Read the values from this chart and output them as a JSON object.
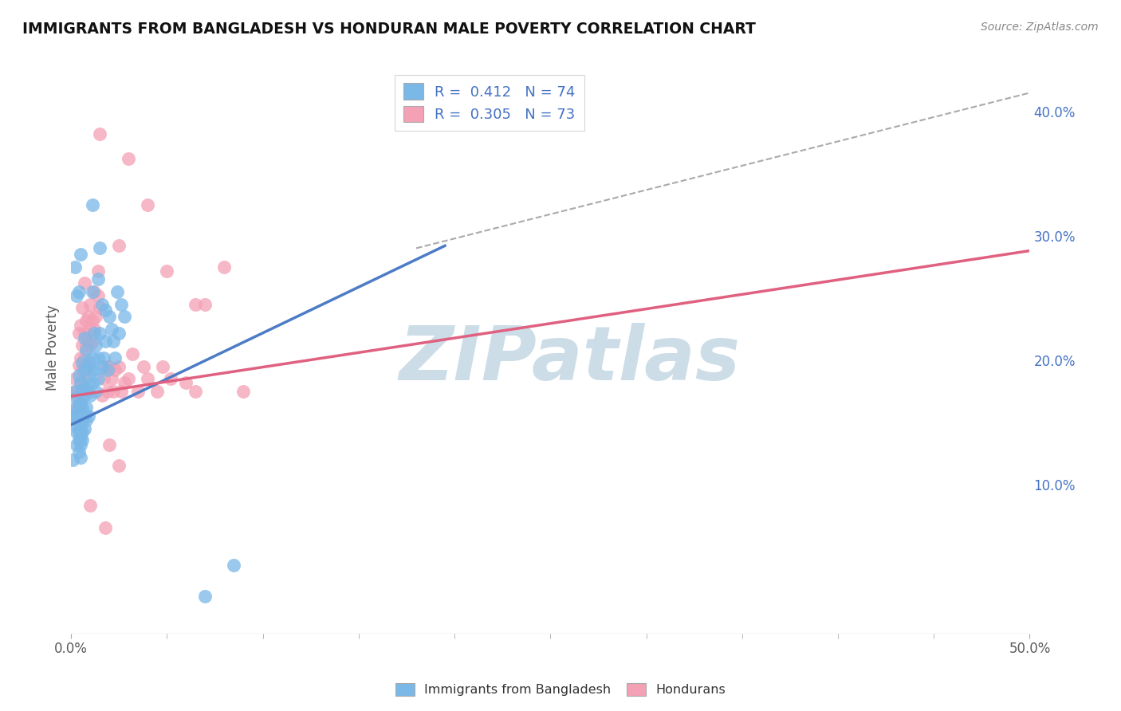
{
  "title": "IMMIGRANTS FROM BANGLADESH VS HONDURAN MALE POVERTY CORRELATION CHART",
  "source": "Source: ZipAtlas.com",
  "ylabel": "Male Poverty",
  "xlim": [
    0.0,
    0.5
  ],
  "ylim": [
    -0.02,
    0.44
  ],
  "yticks_right": [
    0.1,
    0.2,
    0.3,
    0.4
  ],
  "blue_R": 0.412,
  "blue_N": 74,
  "pink_R": 0.305,
  "pink_N": 73,
  "blue_color": "#7ab8e8",
  "pink_color": "#f4a0b5",
  "blue_line_color": "#4d7cc7",
  "pink_line_color": "#e06080",
  "blue_line": [
    [
      0.0,
      0.148
    ],
    [
      0.195,
      0.292
    ]
  ],
  "pink_line": [
    [
      0.0,
      0.171
    ],
    [
      0.5,
      0.288
    ]
  ],
  "ref_line": [
    [
      0.18,
      0.29
    ],
    [
      0.5,
      0.415
    ]
  ],
  "blue_scatter": [
    [
      0.001,
      0.155
    ],
    [
      0.001,
      0.12
    ],
    [
      0.002,
      0.16
    ],
    [
      0.002,
      0.175
    ],
    [
      0.002,
      0.148
    ],
    [
      0.003,
      0.17
    ],
    [
      0.003,
      0.156
    ],
    [
      0.003,
      0.142
    ],
    [
      0.003,
      0.132
    ],
    [
      0.004,
      0.188
    ],
    [
      0.004,
      0.164
    ],
    [
      0.004,
      0.152
    ],
    [
      0.004,
      0.143
    ],
    [
      0.004,
      0.136
    ],
    [
      0.004,
      0.126
    ],
    [
      0.005,
      0.182
    ],
    [
      0.005,
      0.165
    ],
    [
      0.005,
      0.155
    ],
    [
      0.005,
      0.144
    ],
    [
      0.005,
      0.138
    ],
    [
      0.005,
      0.132
    ],
    [
      0.005,
      0.122
    ],
    [
      0.006,
      0.198
    ],
    [
      0.006,
      0.176
    ],
    [
      0.006,
      0.162
    ],
    [
      0.006,
      0.152
    ],
    [
      0.006,
      0.142
    ],
    [
      0.006,
      0.136
    ],
    [
      0.007,
      0.218
    ],
    [
      0.007,
      0.192
    ],
    [
      0.007,
      0.172
    ],
    [
      0.007,
      0.156
    ],
    [
      0.007,
      0.145
    ],
    [
      0.008,
      0.208
    ],
    [
      0.008,
      0.176
    ],
    [
      0.008,
      0.162
    ],
    [
      0.008,
      0.152
    ],
    [
      0.009,
      0.198
    ],
    [
      0.009,
      0.182
    ],
    [
      0.009,
      0.155
    ],
    [
      0.01,
      0.192
    ],
    [
      0.01,
      0.172
    ],
    [
      0.011,
      0.255
    ],
    [
      0.011,
      0.202
    ],
    [
      0.011,
      0.182
    ],
    [
      0.012,
      0.222
    ],
    [
      0.012,
      0.192
    ],
    [
      0.013,
      0.212
    ],
    [
      0.013,
      0.175
    ],
    [
      0.014,
      0.202
    ],
    [
      0.014,
      0.185
    ],
    [
      0.015,
      0.222
    ],
    [
      0.016,
      0.245
    ],
    [
      0.016,
      0.195
    ],
    [
      0.017,
      0.202
    ],
    [
      0.018,
      0.215
    ],
    [
      0.019,
      0.192
    ],
    [
      0.02,
      0.235
    ],
    [
      0.021,
      0.225
    ],
    [
      0.022,
      0.215
    ],
    [
      0.023,
      0.202
    ],
    [
      0.024,
      0.255
    ],
    [
      0.025,
      0.222
    ],
    [
      0.026,
      0.245
    ],
    [
      0.028,
      0.235
    ],
    [
      0.011,
      0.325
    ],
    [
      0.014,
      0.265
    ],
    [
      0.015,
      0.29
    ],
    [
      0.018,
      0.24
    ],
    [
      0.002,
      0.275
    ],
    [
      0.003,
      0.252
    ],
    [
      0.004,
      0.255
    ],
    [
      0.005,
      0.285
    ],
    [
      0.07,
      0.01
    ],
    [
      0.085,
      0.035
    ]
  ],
  "pink_scatter": [
    [
      0.001,
      0.174
    ],
    [
      0.002,
      0.162
    ],
    [
      0.002,
      0.185
    ],
    [
      0.003,
      0.172
    ],
    [
      0.003,
      0.152
    ],
    [
      0.004,
      0.222
    ],
    [
      0.004,
      0.196
    ],
    [
      0.004,
      0.175
    ],
    [
      0.004,
      0.162
    ],
    [
      0.005,
      0.228
    ],
    [
      0.005,
      0.202
    ],
    [
      0.005,
      0.182
    ],
    [
      0.005,
      0.165
    ],
    [
      0.006,
      0.242
    ],
    [
      0.006,
      0.212
    ],
    [
      0.006,
      0.192
    ],
    [
      0.006,
      0.175
    ],
    [
      0.007,
      0.262
    ],
    [
      0.007,
      0.222
    ],
    [
      0.007,
      0.202
    ],
    [
      0.007,
      0.185
    ],
    [
      0.008,
      0.232
    ],
    [
      0.008,
      0.212
    ],
    [
      0.008,
      0.192
    ],
    [
      0.009,
      0.235
    ],
    [
      0.009,
      0.215
    ],
    [
      0.009,
      0.195
    ],
    [
      0.009,
      0.175
    ],
    [
      0.01,
      0.245
    ],
    [
      0.01,
      0.225
    ],
    [
      0.01,
      0.212
    ],
    [
      0.011,
      0.232
    ],
    [
      0.011,
      0.215
    ],
    [
      0.012,
      0.255
    ],
    [
      0.012,
      0.225
    ],
    [
      0.013,
      0.235
    ],
    [
      0.014,
      0.272
    ],
    [
      0.014,
      0.252
    ],
    [
      0.015,
      0.242
    ],
    [
      0.016,
      0.172
    ],
    [
      0.017,
      0.185
    ],
    [
      0.018,
      0.195
    ],
    [
      0.019,
      0.175
    ],
    [
      0.02,
      0.195
    ],
    [
      0.021,
      0.185
    ],
    [
      0.022,
      0.175
    ],
    [
      0.023,
      0.192
    ],
    [
      0.025,
      0.195
    ],
    [
      0.026,
      0.175
    ],
    [
      0.028,
      0.182
    ],
    [
      0.03,
      0.185
    ],
    [
      0.032,
      0.205
    ],
    [
      0.035,
      0.175
    ],
    [
      0.038,
      0.195
    ],
    [
      0.04,
      0.185
    ],
    [
      0.045,
      0.175
    ],
    [
      0.048,
      0.195
    ],
    [
      0.052,
      0.185
    ],
    [
      0.06,
      0.182
    ],
    [
      0.065,
      0.175
    ],
    [
      0.07,
      0.245
    ],
    [
      0.08,
      0.275
    ],
    [
      0.03,
      0.362
    ],
    [
      0.04,
      0.325
    ],
    [
      0.05,
      0.272
    ],
    [
      0.015,
      0.382
    ],
    [
      0.025,
      0.292
    ],
    [
      0.065,
      0.245
    ],
    [
      0.09,
      0.175
    ],
    [
      0.01,
      0.083
    ],
    [
      0.018,
      0.065
    ],
    [
      0.02,
      0.132
    ],
    [
      0.025,
      0.115
    ]
  ],
  "watermark": "ZIPatlas",
  "watermark_color": "#ccdde8",
  "background_color": "#ffffff",
  "grid_color": "#e8e8e8"
}
